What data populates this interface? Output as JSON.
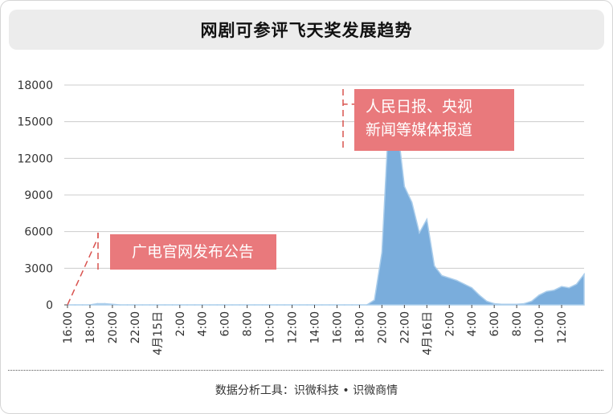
{
  "title": "网剧可参评飞天奖发展趋势",
  "footer": "数据分析工具：识微科技 • 识微商情",
  "colors": {
    "area": "#7aaddc",
    "area_stroke": "#aacdeb",
    "annotation_bg": "#e9797c",
    "annotation_line": "#d9534f",
    "grid": "#cccccc",
    "axis": "#444444"
  },
  "chart_data": {
    "type": "area",
    "title": "",
    "xlabel": "",
    "ylabel": "",
    "ylim": [
      0,
      18000
    ],
    "yticks": [
      0,
      3000,
      6000,
      9000,
      12000,
      15000,
      18000
    ],
    "grid": "horizontal",
    "x_labels": [
      "16:00",
      "18:00",
      "20:00",
      "22:00",
      "4月15日",
      "2:00",
      "4:00",
      "6:00",
      "8:00",
      "10:00",
      "12:00",
      "14:00",
      "16:00",
      "18:00",
      "20:00",
      "22:00",
      "4月16日",
      "2:00",
      "4:00",
      "6:00",
      "8:00",
      "10:00",
      "12:00"
    ],
    "series": [
      {
        "values": [
          0,
          0,
          0,
          0,
          100,
          100,
          50,
          0,
          0,
          0,
          0,
          0,
          0,
          0,
          0,
          0,
          0,
          0,
          0,
          0,
          0,
          0,
          0,
          0,
          0,
          0,
          0,
          0,
          0,
          0,
          0,
          0,
          0,
          0,
          0,
          0,
          0,
          0,
          0,
          0,
          0,
          400,
          4300,
          16300,
          15000,
          9700,
          8400,
          5900,
          7000,
          3200,
          2400,
          2200,
          2000,
          1700,
          1400,
          800,
          300,
          100,
          50,
          50,
          50,
          100,
          300,
          800,
          1100,
          1200,
          1500,
          1400,
          1700,
          2500
        ]
      }
    ],
    "annotations": [
      {
        "text": "广电官网发布公告"
      },
      {
        "text": "人民日报、央视\n新闻等媒体报道"
      }
    ]
  }
}
